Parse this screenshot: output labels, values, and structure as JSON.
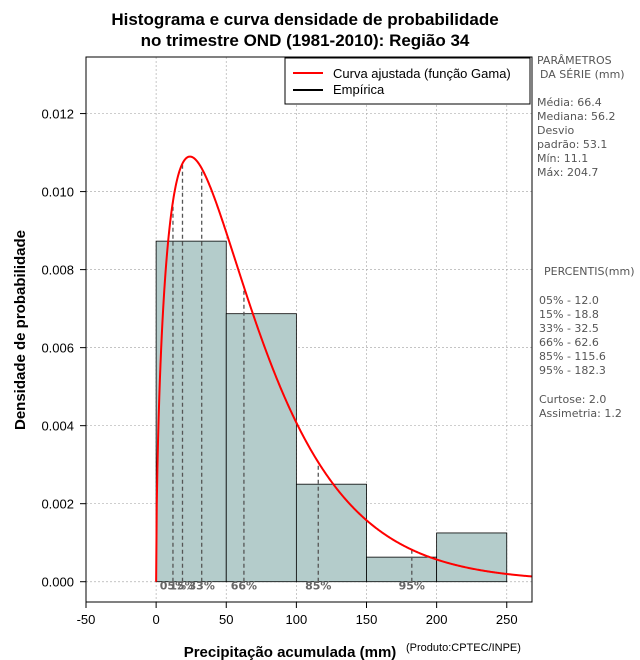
{
  "chart_data": {
    "type": "bar",
    "title_line1": "Histograma e curva densidade de probabilidade",
    "title_line2": "no trimestre OND (1981-2010): Região 34",
    "xlabel": "Precipitação acumulada (mm)",
    "ylabel": "Densidade de probabilidade",
    "credit": "(Produto:CPTEC/INPE)",
    "xlim": [
      -50,
      268
    ],
    "ylim": [
      -0.00052,
      0.01345
    ],
    "x_ticks": [
      -50,
      0,
      50,
      100,
      150,
      200,
      250
    ],
    "x_tick_labels": [
      "-50",
      "0",
      "50",
      "100",
      "150",
      "200",
      "250"
    ],
    "y_ticks": [
      0.0,
      0.002,
      0.004,
      0.006,
      0.008,
      0.01,
      0.012
    ],
    "y_tick_labels": [
      "0.000",
      "0.002",
      "0.004",
      "0.006",
      "0.008",
      "0.010",
      "0.012"
    ],
    "grid": true,
    "bins": [
      {
        "from": 0,
        "to": 50,
        "density": 0.00873
      },
      {
        "from": 50,
        "to": 100,
        "density": 0.00687
      },
      {
        "from": 100,
        "to": 150,
        "density": 0.0025
      },
      {
        "from": 150,
        "to": 200,
        "density": 0.00063
      },
      {
        "from": 200,
        "to": 250,
        "density": 0.00125
      }
    ],
    "gamma_fit": {
      "shape": 1.57,
      "scale": 42.3,
      "x_start": 0,
      "x_end": 268
    },
    "percentile_markers": [
      {
        "label": "05%",
        "value": 12.0
      },
      {
        "label": "15%",
        "value": 18.8
      },
      {
        "label": "33%",
        "value": 32.5
      },
      {
        "label": "66%",
        "value": 62.6
      },
      {
        "label": "85%",
        "value": 115.6
      },
      {
        "label": "95%",
        "value": 182.3
      }
    ],
    "legend": [
      {
        "label": "Curva ajustada (função Gama)",
        "color": "#ff0000"
      },
      {
        "label": "Empírica",
        "color": "#000000"
      }
    ],
    "colors": {
      "bar_fill": "#b4cccb",
      "bar_stroke": "#000000",
      "curve": "#ff0000",
      "marker": "#555555",
      "grid": "#b0b0b0"
    }
  },
  "side_panel": {
    "params_title_1": "PARÂMETROS",
    "params_title_2": "DA SÉRIE (mm)",
    "media": "Média:  66.4",
    "mediana": "Mediana:  56.2",
    "desvio_1": "Desvio",
    "desvio_2": "padrão:  53.1",
    "min": "Mín:  11.1",
    "max": "Máx:  204.7",
    "percentis_title": "PERCENTIS(mm)",
    "p05": "05% -  12.0",
    "p15": "15% -  18.8",
    "p33": "33% -  32.5",
    "p66": "66% -  62.6",
    "p85": "85% -  115.6",
    "p95": "95% -  182.3",
    "curtose": "Curtose:  2.0",
    "assimetria": "Assimetria:  1.2"
  }
}
